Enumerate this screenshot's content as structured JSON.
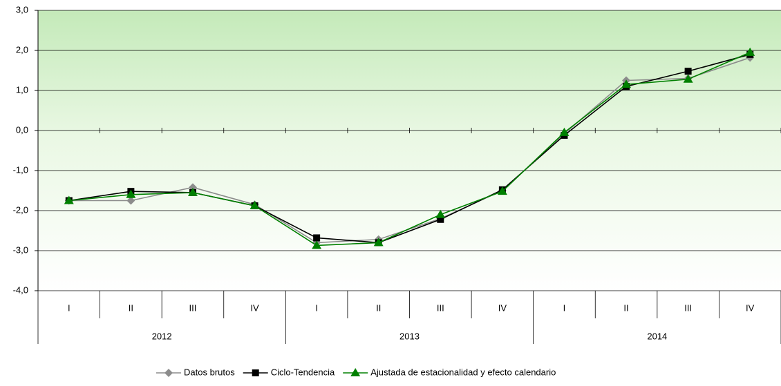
{
  "chart_data": {
    "type": "line",
    "categories": [
      "I",
      "II",
      "III",
      "IV",
      "I",
      "II",
      "III",
      "IV",
      "I",
      "II",
      "III",
      "IV"
    ],
    "category_groups": [
      "2012",
      "2013",
      "2014"
    ],
    "series": [
      {
        "name": "Datos brutos",
        "color": "#8c8c8c",
        "marker": "diamond",
        "values": [
          -1.75,
          -1.75,
          -1.42,
          -1.85,
          -2.8,
          -2.72,
          -2.2,
          -1.5,
          -0.08,
          1.25,
          1.3,
          1.82
        ]
      },
      {
        "name": "Ciclo-Tendencia",
        "color": "#000000",
        "marker": "square",
        "values": [
          -1.75,
          -1.52,
          -1.55,
          -1.88,
          -2.68,
          -2.8,
          -2.22,
          -1.48,
          -0.12,
          1.1,
          1.48,
          1.9
        ]
      },
      {
        "name": "Ajustada de estacionalidad y efecto calendario",
        "color": "#008000",
        "marker": "triangle",
        "values": [
          -1.75,
          -1.6,
          -1.55,
          -1.88,
          -2.87,
          -2.8,
          -2.1,
          -1.52,
          -0.05,
          1.15,
          1.28,
          1.95
        ]
      }
    ],
    "ylim": [
      -4,
      3
    ],
    "yticks": [
      {
        "value": -4,
        "label": "-4,0"
      },
      {
        "value": -3,
        "label": "-3,0"
      },
      {
        "value": -2,
        "label": "-2,0"
      },
      {
        "value": -1,
        "label": "-1,0"
      },
      {
        "value": 0,
        "label": "0,0"
      },
      {
        "value": 1,
        "label": "1,0"
      },
      {
        "value": 2,
        "label": "2,0"
      },
      {
        "value": 3,
        "label": "3,0"
      }
    ],
    "grid": true,
    "legend": "bottom"
  }
}
